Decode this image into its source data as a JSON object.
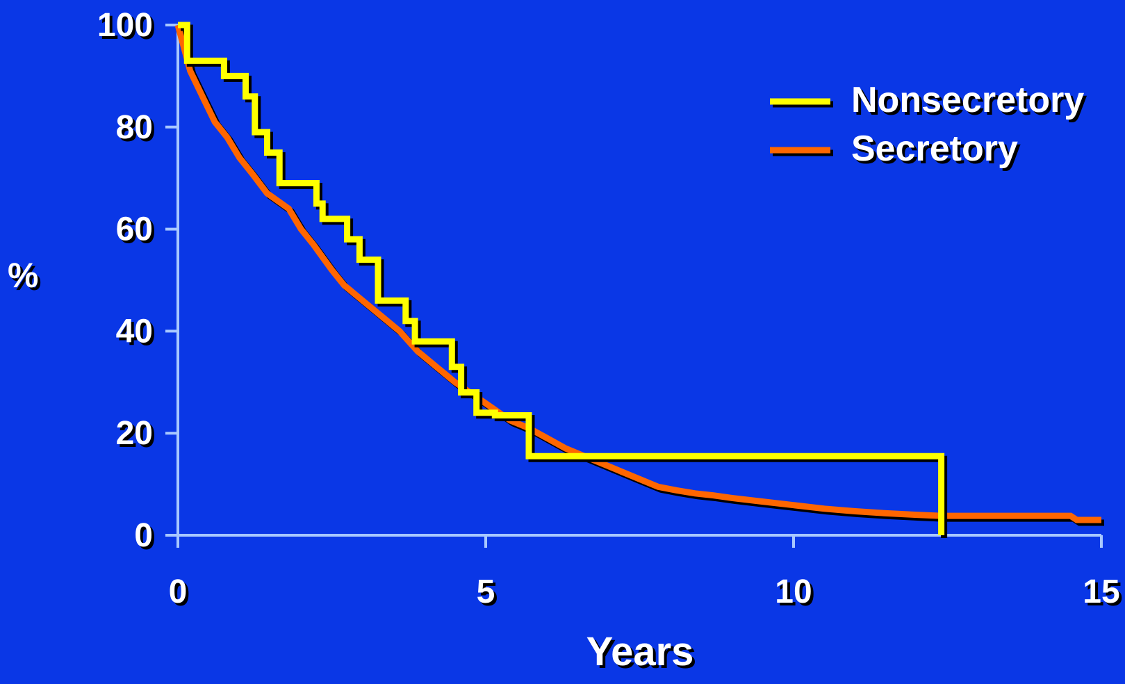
{
  "chart_data": {
    "type": "line",
    "xlabel": "Years",
    "ylabel": "%",
    "xlim": [
      0,
      15
    ],
    "ylim": [
      0,
      100
    ],
    "x_ticks": [
      "0",
      "5",
      "10",
      "15"
    ],
    "y_ticks": [
      "100",
      "80",
      "60",
      "40",
      "20",
      "0"
    ],
    "grid": false,
    "legend_position": "top-right",
    "colors": {
      "background": "#0a37e6",
      "axis": "#a8c8ff",
      "text": "#ffffff",
      "Nonsecretory": "#ffff00",
      "Secretory": "#ff6600"
    },
    "series": [
      {
        "name": "Nonsecretory",
        "step": true,
        "x": [
          0,
          0.15,
          0.75,
          1.1,
          1.25,
          1.45,
          1.65,
          2.25,
          2.35,
          2.75,
          2.95,
          3.25,
          3.7,
          3.85,
          4.45,
          4.6,
          4.85,
          5.15,
          5.7,
          12.4,
          12.4
        ],
        "y": [
          100,
          93,
          90,
          86,
          79,
          75,
          69,
          65,
          62,
          58,
          54,
          46,
          42,
          38,
          33,
          28,
          24,
          23.5,
          15.5,
          15.5,
          0
        ]
      },
      {
        "name": "Secretory",
        "x": [
          0,
          0.2,
          0.4,
          0.6,
          0.8,
          1.0,
          1.2,
          1.45,
          1.8,
          2.0,
          2.2,
          2.5,
          2.7,
          3.0,
          3.3,
          3.6,
          3.9,
          4.2,
          4.5,
          4.8,
          5.1,
          5.4,
          5.7,
          6.0,
          6.3,
          6.6,
          6.9,
          7.2,
          7.5,
          7.8,
          8.1,
          8.4,
          8.7,
          9.0,
          9.5,
          10.0,
          10.5,
          11.0,
          11.5,
          12.0,
          12.4,
          13.0,
          13.5,
          14.0,
          14.5,
          14.6,
          15.0
        ],
        "y": [
          100,
          91,
          86,
          81,
          78,
          74,
          71,
          67,
          64,
          60,
          57,
          52,
          49,
          46,
          43,
          40,
          36,
          33,
          30,
          27.5,
          25,
          22.5,
          21,
          19,
          17,
          15.5,
          14,
          12.5,
          11,
          9.5,
          8.8,
          8.2,
          7.8,
          7.3,
          6.6,
          5.9,
          5.2,
          4.7,
          4.3,
          4.0,
          3.8,
          3.8,
          3.8,
          3.8,
          3.8,
          3,
          3
        ]
      }
    ]
  }
}
